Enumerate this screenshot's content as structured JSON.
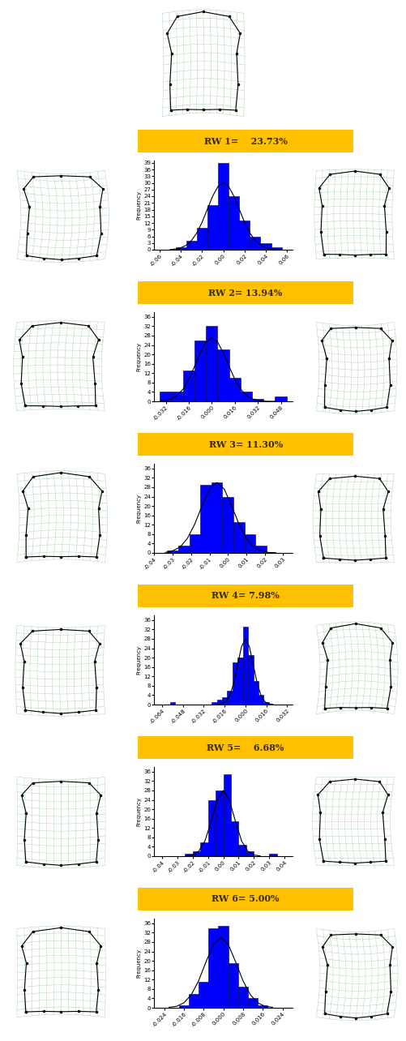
{
  "chart_data": [
    {
      "type": "histogram",
      "title": "RW 1=    23.73%",
      "y_label": "Frequency",
      "color": "#0000ff",
      "bins": [
        -0.045,
        -0.035,
        -0.025,
        -0.015,
        -0.005,
        0.005,
        0.015,
        0.025,
        0.035,
        0.045,
        0.055
      ],
      "counts": [
        1,
        4,
        10,
        20,
        39,
        24,
        13,
        6,
        3,
        1
      ],
      "series": [
        {
          "type": "line",
          "color": "#000000",
          "x": [
            -0.05,
            -0.045,
            -0.04,
            -0.035,
            -0.03,
            -0.025,
            -0.02,
            -0.015,
            -0.01,
            -0.005,
            0.0,
            0.005,
            0.01,
            0.015,
            0.02,
            0.025,
            0.03,
            0.035,
            0.04,
            0.045,
            0.05
          ],
          "values": [
            0.1,
            0.3,
            0.9,
            2.0,
            4.1,
            7.5,
            12.3,
            18.2,
            24.0,
            28.4,
            30,
            28.4,
            24.0,
            18.2,
            12.3,
            7.5,
            4.1,
            2.0,
            0.9,
            0.3,
            0.1
          ]
        }
      ],
      "xlim": [
        -0.065,
        0.065
      ],
      "xticks": [
        -0.06,
        -0.04,
        -0.02,
        {
          "value": 0.0,
          "label": "0.00"
        },
        0.02,
        0.04,
        0.06
      ],
      "ylim": [
        0,
        40
      ],
      "yticks": [
        0,
        3,
        6,
        9,
        12,
        15,
        18,
        21,
        24,
        27,
        30,
        33,
        36,
        39
      ]
    },
    {
      "type": "histogram",
      "title": "RW 2= 13.94%",
      "y_label": "Frequency",
      "color": "#0000ff",
      "bins": [
        -0.036,
        -0.028,
        -0.02,
        -0.012,
        -0.004,
        0.004,
        0.012,
        0.02,
        0.028,
        0.036,
        0.044,
        0.052
      ],
      "counts": [
        4,
        4,
        13,
        26,
        32,
        22,
        10,
        4,
        1,
        0,
        2
      ],
      "series": [
        {
          "type": "line",
          "color": "#000000",
          "x": [
            -0.036,
            -0.032,
            -0.028,
            -0.024,
            -0.02,
            -0.016,
            -0.012,
            -0.008,
            -0.004,
            0.0,
            0.004,
            0.008,
            0.012,
            0.016,
            0.02,
            0.024,
            0.028,
            0.032,
            0.036,
            0.04,
            0.044
          ],
          "values": [
            0.1,
            0.4,
            1.1,
            2.5,
            5.2,
            9.4,
            14.9,
            20.7,
            25.3,
            27,
            25.3,
            20.7,
            14.9,
            9.4,
            5.2,
            2.5,
            1.1,
            0.4,
            0.1,
            0.0,
            0.0
          ]
        }
      ],
      "xlim": [
        -0.04,
        0.056
      ],
      "xticks": [
        -0.032,
        -0.016,
        {
          "value": 0.0,
          "label": "0.000"
        },
        0.016,
        0.032,
        0.048
      ],
      "ylim": [
        0,
        38
      ],
      "yticks": [
        0,
        4,
        8,
        12,
        16,
        20,
        24,
        28,
        32,
        36
      ]
    },
    {
      "type": "histogram",
      "title": "RW 3= 11.30%",
      "y_label": "Frequency",
      "color": "#0000ff",
      "bins": [
        -0.033,
        -0.027,
        -0.021,
        -0.015,
        -0.009,
        -0.003,
        0.003,
        0.009,
        0.015,
        0.021
      ],
      "counts": [
        1,
        3,
        8,
        29,
        30,
        24,
        13,
        8,
        3
      ],
      "series": [
        {
          "type": "line",
          "color": "#000000",
          "x": [
            -0.034,
            -0.03,
            -0.026,
            -0.022,
            -0.018,
            -0.014,
            -0.01,
            -0.006,
            -0.002,
            0.002,
            0.006,
            0.01,
            0.014,
            0.018,
            0.022,
            0.026
          ],
          "values": [
            0.2,
            0.9,
            2.5,
            6.2,
            12.3,
            20.2,
            27.2,
            30,
            27.2,
            20.2,
            12.3,
            6.2,
            2.5,
            0.9,
            0.2,
            0.1
          ]
        }
      ],
      "xlim": [
        -0.04,
        0.035
      ],
      "xticks": [
        -0.04,
        -0.03,
        -0.02,
        -0.01,
        {
          "value": 0.0,
          "label": "0.00"
        },
        0.01,
        0.02,
        0.03
      ],
      "ylim": [
        0,
        38
      ],
      "yticks": [
        0,
        4,
        8,
        12,
        16,
        20,
        24,
        28,
        32,
        36
      ]
    },
    {
      "type": "histogram",
      "title": "RW 4= 7.98%",
      "y_label": "Frequency",
      "color": "#0000ff",
      "bins": [
        -0.058,
        -0.054,
        -0.05,
        -0.046,
        -0.042,
        -0.038,
        -0.034,
        -0.03,
        -0.026,
        -0.022,
        -0.018,
        -0.014,
        -0.01,
        -0.006,
        -0.002,
        0.002,
        0.006,
        0.01,
        0.014,
        0.018,
        0.022
      ],
      "counts": [
        1,
        0,
        0,
        0,
        0,
        0,
        0,
        0,
        1,
        2,
        3,
        6,
        18,
        20,
        33,
        21,
        10,
        4,
        1,
        0
      ],
      "series": [
        {
          "type": "line",
          "color": "#000000",
          "x": [
            -0.021,
            -0.018,
            -0.015,
            -0.012,
            -0.009,
            -0.006,
            -0.003,
            0.0,
            0.003,
            0.006,
            0.009,
            0.012,
            0.015,
            0.018,
            0.021
          ],
          "values": [
            0.1,
            0.3,
            1.2,
            3.8,
            9.1,
            17.0,
            24.7,
            28,
            24.7,
            17.0,
            9.1,
            3.8,
            1.2,
            0.3,
            0.1
          ]
        }
      ],
      "xlim": [
        -0.07,
        0.036
      ],
      "xticks": [
        -0.064,
        -0.048,
        -0.032,
        -0.016,
        {
          "value": 0.0,
          "label": "0.000"
        },
        0.016,
        0.032
      ],
      "ylim": [
        0,
        38
      ],
      "yticks": [
        0,
        4,
        8,
        12,
        16,
        20,
        24,
        28,
        32,
        36
      ]
    },
    {
      "type": "histogram",
      "title": "RW 5=    6.68%",
      "y_label": "Frequency",
      "color": "#0000ff",
      "bins": [
        -0.025,
        -0.02,
        -0.015,
        -0.01,
        -0.005,
        0.0,
        0.005,
        0.01,
        0.015,
        0.02,
        0.025,
        0.03,
        0.035,
        0.04
      ],
      "counts": [
        1,
        2,
        6,
        24,
        28,
        35,
        15,
        5,
        2,
        0,
        0,
        1,
        0
      ],
      "series": [
        {
          "type": "line",
          "color": "#000000",
          "x": [
            -0.024,
            -0.02,
            -0.016,
            -0.012,
            -0.008,
            -0.004,
            0.0,
            0.004,
            0.008,
            0.012,
            0.016,
            0.02,
            0.024
          ],
          "values": [
            0.1,
            0.5,
            2.1,
            6.4,
            14.6,
            23.8,
            28,
            23.8,
            14.6,
            6.4,
            2.1,
            0.5,
            0.1
          ]
        }
      ],
      "xlim": [
        -0.045,
        0.045
      ],
      "xticks": [
        -0.04,
        -0.03,
        -0.02,
        -0.01,
        {
          "value": 0.0,
          "label": "0.00"
        },
        0.01,
        0.02,
        0.03,
        0.04
      ],
      "ylim": [
        0,
        38
      ],
      "yticks": [
        0,
        4,
        8,
        12,
        16,
        20,
        24,
        28,
        32,
        36
      ]
    },
    {
      "type": "histogram",
      "title": "RW 6= 5.00%",
      "y_label": "Frequency",
      "color": "#0000ff",
      "bins": [
        -0.018,
        -0.014,
        -0.01,
        -0.006,
        -0.002,
        0.002,
        0.006,
        0.01,
        0.014,
        0.018
      ],
      "counts": [
        1,
        6,
        11,
        34,
        35,
        19,
        9,
        4,
        1
      ],
      "series": [
        {
          "type": "line",
          "color": "#000000",
          "x": [
            -0.022,
            -0.019,
            -0.016,
            -0.013,
            -0.01,
            -0.007,
            -0.004,
            -0.001,
            0.002,
            0.005,
            0.008,
            0.011,
            0.014,
            0.017,
            0.02
          ],
          "values": [
            0.2,
            0.6,
            2.1,
            5.5,
            11.5,
            19.6,
            27.0,
            30,
            27.0,
            19.6,
            11.5,
            5.5,
            2.1,
            0.6,
            0.2
          ]
        }
      ],
      "xlim": [
        -0.028,
        0.028
      ],
      "xticks": [
        -0.024,
        -0.016,
        -0.008,
        {
          "value": 0.0,
          "label": "0.000"
        },
        0.008,
        0.016,
        0.024
      ],
      "ylim": [
        0,
        38
      ],
      "yticks": [
        0,
        4,
        8,
        12,
        16,
        20,
        24,
        28,
        32,
        36
      ]
    }
  ]
}
